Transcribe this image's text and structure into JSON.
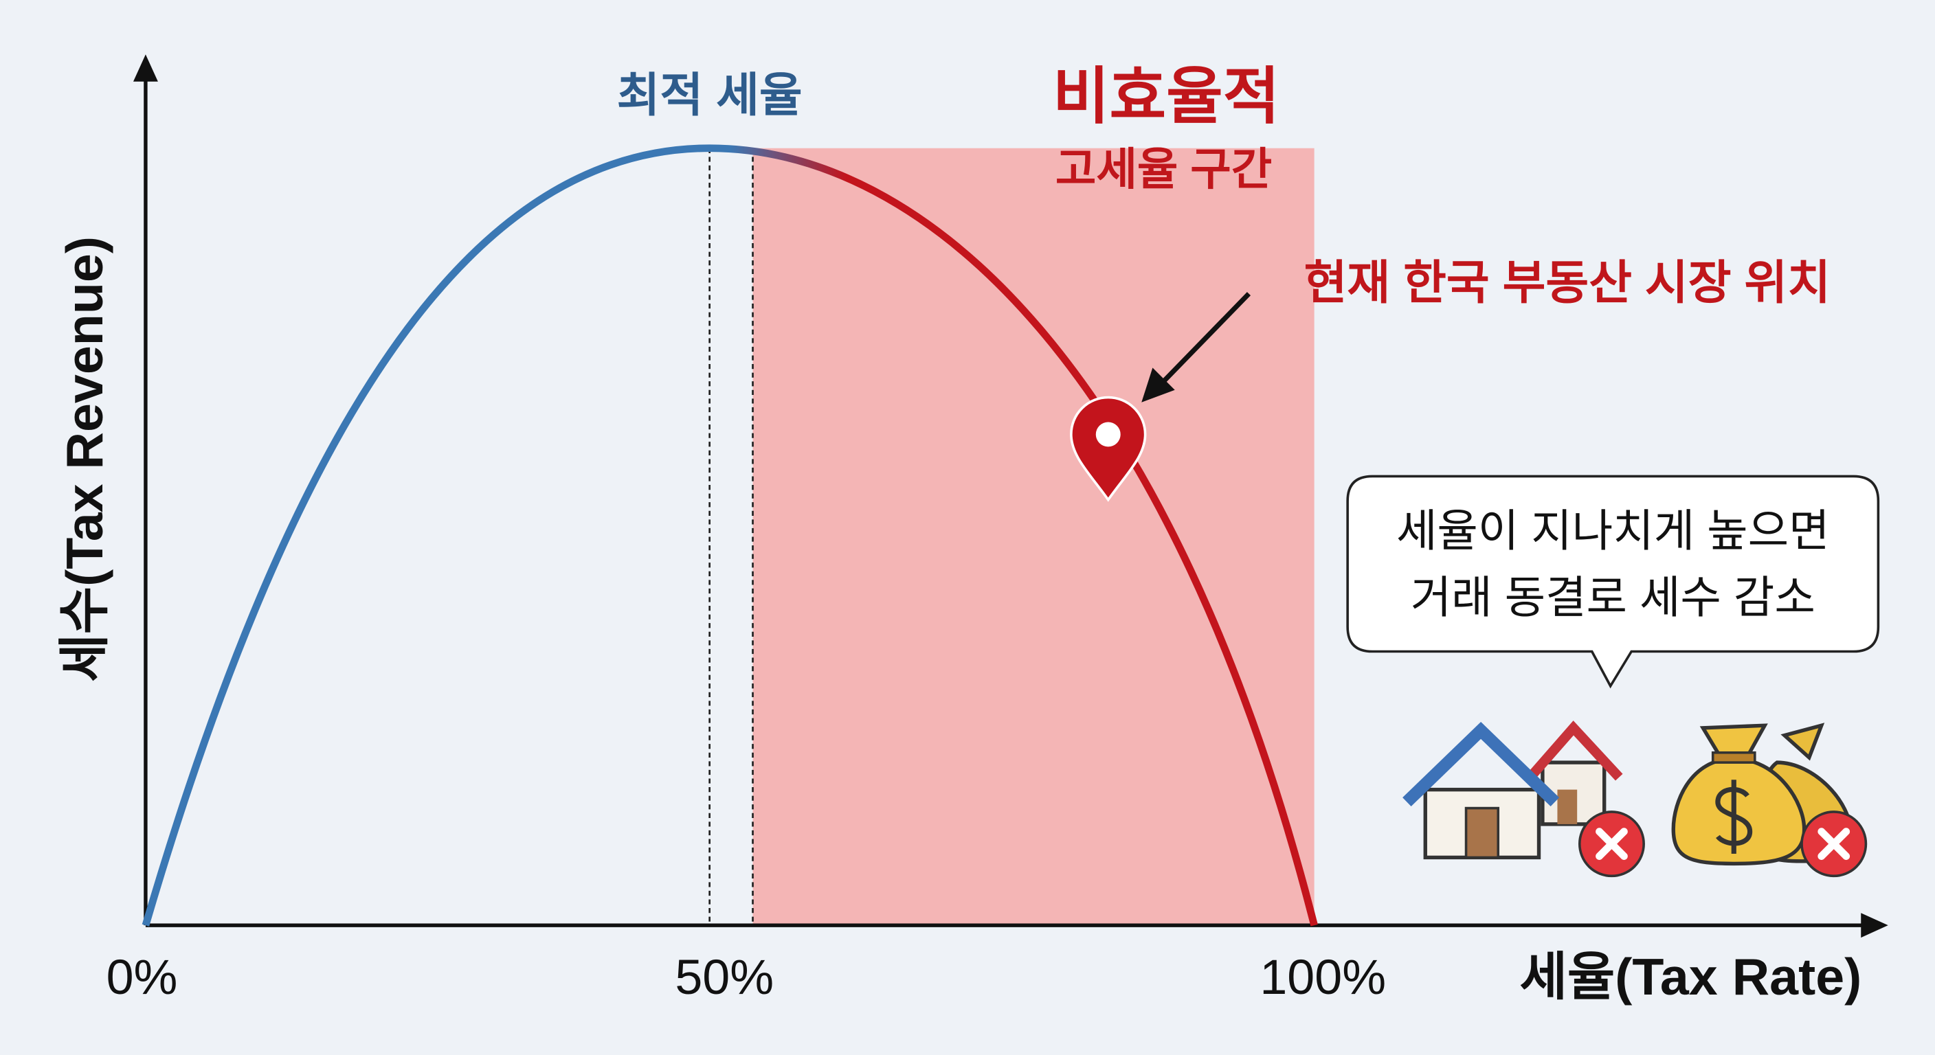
{
  "labels": {
    "optimal": "최적 세율",
    "inefficient_title": "비효율적",
    "inefficient_subtitle": "고세율 구간",
    "current_position": "현재 한국 부동산 시장 위치",
    "y_axis": "세수(Tax Revenue)",
    "x_axis": "세율(Tax Rate)"
  },
  "x_ticks": [
    "0%",
    "50%",
    "100%"
  ],
  "callout": {
    "lines": [
      "세율이 지나치게 높으면",
      "거래 동결로 세수 감소"
    ]
  }
}
